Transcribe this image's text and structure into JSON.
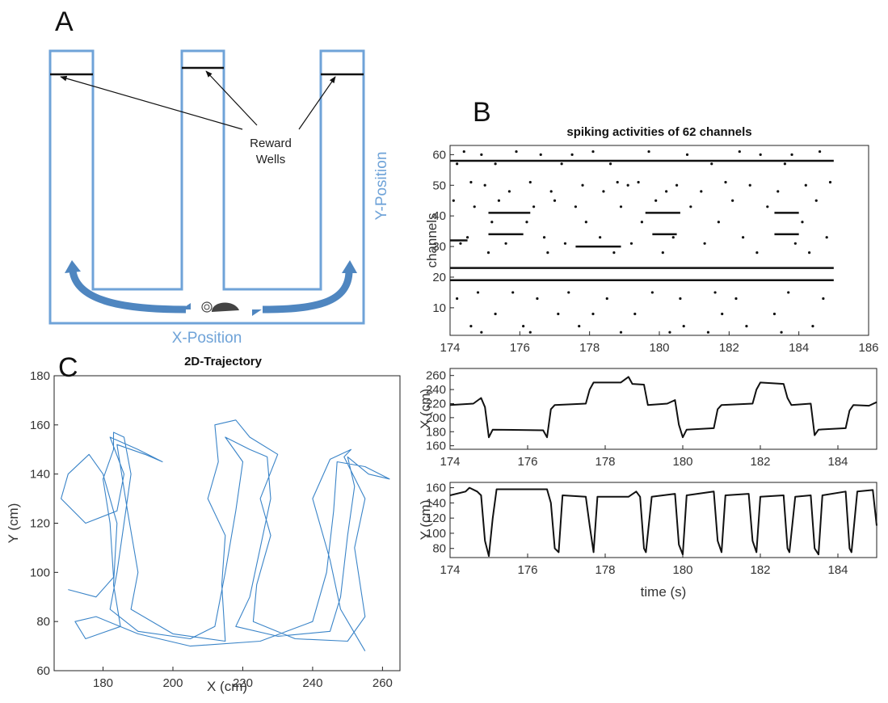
{
  "diagram": {
    "panel_label": "A",
    "callout": [
      "Reward",
      "Wells"
    ],
    "y_axis_label": "Y-Position",
    "x_axis_label": "X-Position"
  },
  "chart_data": [
    {
      "type": "line",
      "panel_label": "C",
      "title": "2D-Trajectory",
      "x_label": "X (cm)",
      "y_label": "Y (cm)",
      "xlim": [
        166,
        265
      ],
      "ylim": [
        60,
        180
      ],
      "xticks": [
        180,
        200,
        220,
        240,
        260
      ],
      "yticks": [
        60,
        80,
        100,
        120,
        140,
        160,
        180
      ],
      "series": [
        {
          "color": "#3a84c8",
          "x": [
            170,
            178,
            183,
            182,
            180,
            183,
            183,
            186,
            188,
            186,
            184,
            182,
            190,
            205,
            212,
            215,
            218,
            220,
            215,
            222,
            227,
            228,
            225,
            222,
            218,
            230,
            245,
            248,
            250,
            252,
            250,
            256,
            262,
            255,
            247,
            246,
            244,
            240,
            225,
            205,
            190,
            178,
            172,
            175,
            185,
            183,
            184,
            180,
            176,
            170,
            168,
            175,
            184,
            186,
            182,
            190,
            197,
            192,
            184,
            187,
            190,
            188,
            200,
            215,
            214,
            215,
            210,
            213,
            212,
            218,
            222,
            230,
            225,
            228,
            224,
            223,
            235,
            250,
            255,
            252,
            255,
            249,
            251,
            245,
            240,
            245,
            248,
            255
          ],
          "y": [
            93,
            90,
            98,
            120,
            138,
            150,
            157,
            155,
            140,
            120,
            100,
            85,
            76,
            73,
            78,
            100,
            125,
            145,
            155,
            150,
            147,
            130,
            110,
            90,
            78,
            74,
            76,
            90,
            115,
            135,
            147,
            140,
            138,
            143,
            145,
            125,
            100,
            80,
            72,
            70,
            75,
            82,
            80,
            73,
            78,
            95,
            120,
            140,
            148,
            140,
            130,
            120,
            125,
            140,
            155,
            150,
            145,
            148,
            152,
            125,
            100,
            85,
            75,
            72,
            95,
            115,
            130,
            145,
            160,
            162,
            155,
            148,
            130,
            115,
            95,
            80,
            73,
            72,
            82,
            110,
            130,
            147,
            150,
            146,
            130,
            105,
            85,
            68
          ]
        }
      ]
    },
    {
      "type": "raster",
      "panel_label": "B",
      "title": "spiking activities of 62 channels",
      "y_label": "channels",
      "xlim": [
        174,
        186
      ],
      "ylim": [
        1,
        63
      ],
      "xticks": [
        174,
        176,
        178,
        180,
        182,
        184,
        186
      ],
      "yticks": [
        10,
        20,
        30,
        40,
        50,
        60
      ],
      "color": "#111111",
      "x": [
        174.4,
        175.9,
        178.1,
        179.7,
        182.3,
        184.6,
        174.9,
        176.6,
        177.5,
        180.8,
        182.9,
        183.8,
        174.2,
        175.3,
        177.2,
        178.6,
        181.5,
        183.6,
        174.6,
        176.3,
        178.8,
        179.4,
        181.9,
        184.9,
        175.0,
        177.8,
        179.1,
        180.5,
        182.6,
        184.2,
        175.7,
        176.9,
        178.4,
        180.2,
        181.2,
        183.4,
        174.1,
        175.4,
        177.0,
        179.9,
        182.1,
        184.5,
        174.7,
        176.4,
        177.6,
        178.9,
        180.9,
        183.1,
        175.2,
        176.2,
        177.9,
        179.5,
        181.7,
        184.1,
        174.5,
        176.7,
        178.3,
        180.4,
        182.4,
        184.8,
        174.3,
        175.6,
        177.3,
        179.2,
        181.3,
        183.9,
        175.1,
        176.8,
        178.7,
        180.1,
        182.8,
        184.3,
        174.8,
        175.8,
        177.4,
        179.8,
        181.6,
        183.7,
        174.2,
        176.5,
        178.5,
        180.6,
        182.2,
        184.7,
        175.3,
        177.1,
        178.1,
        179.3,
        181.8,
        183.3,
        174.6,
        176.1,
        177.7,
        180.7,
        182.5,
        184.4,
        174.9,
        176.3,
        178.9,
        180.3,
        181.4,
        183.5
      ],
      "y": [
        61,
        61,
        61,
        61,
        61,
        61,
        60,
        60,
        60,
        60,
        60,
        60,
        57,
        57,
        57,
        57,
        57,
        57,
        51,
        51,
        51,
        51,
        51,
        51,
        50,
        50,
        50,
        50,
        50,
        50,
        48,
        48,
        48,
        48,
        48,
        48,
        45,
        45,
        45,
        45,
        45,
        45,
        43,
        43,
        43,
        43,
        43,
        43,
        38,
        38,
        38,
        38,
        38,
        38,
        33,
        33,
        33,
        33,
        33,
        33,
        31,
        31,
        31,
        31,
        31,
        31,
        28,
        28,
        28,
        28,
        28,
        28,
        15,
        15,
        15,
        15,
        15,
        15,
        13,
        13,
        13,
        13,
        13,
        13,
        8,
        8,
        8,
        8,
        8,
        8,
        4,
        4,
        4,
        4,
        4,
        4,
        2,
        2,
        2,
        2,
        2,
        2
      ],
      "segments": {
        "channel": [
          58,
          23,
          19,
          41,
          34,
          41,
          34,
          41,
          34,
          32,
          30
        ],
        "start": [
          174,
          174,
          174,
          175.1,
          175.1,
          179.6,
          179.8,
          183.3,
          183.3,
          174,
          177.6
        ],
        "end": [
          185,
          185,
          185,
          176.3,
          176.1,
          180.6,
          180.5,
          184,
          184,
          174.5,
          178.9
        ]
      }
    },
    {
      "type": "line",
      "y_label": "X (cm)",
      "xlim": [
        174,
        185
      ],
      "ylim": [
        155,
        270
      ],
      "xticks": [
        174,
        176,
        178,
        180,
        182,
        184
      ],
      "yticks": [
        160,
        180,
        200,
        220,
        240,
        260
      ],
      "series": [
        {
          "color": "#111111",
          "x": [
            174,
            174.6,
            174.8,
            174.9,
            175.0,
            175.1,
            176.4,
            176.5,
            176.6,
            176.7,
            177.5,
            177.6,
            177.7,
            178.4,
            178.6,
            178.7,
            179.0,
            179.1,
            179.6,
            179.8,
            179.9,
            180.0,
            180.1,
            180.8,
            180.9,
            181.0,
            181.8,
            181.9,
            182.0,
            182.6,
            182.7,
            182.8,
            183.3,
            183.4,
            183.5,
            184.2,
            184.3,
            184.4,
            184.8,
            185
          ],
          "y": [
            218,
            220,
            228,
            215,
            172,
            183,
            182,
            172,
            212,
            218,
            220,
            240,
            250,
            250,
            258,
            248,
            247,
            218,
            220,
            225,
            190,
            172,
            183,
            185,
            212,
            218,
            220,
            240,
            250,
            248,
            228,
            218,
            220,
            175,
            183,
            185,
            210,
            218,
            217,
            222
          ]
        }
      ]
    },
    {
      "type": "line",
      "y_label": "Y (cm)",
      "x_label": "time (s)",
      "xlim": [
        174,
        185
      ],
      "ylim": [
        68,
        167
      ],
      "xticks": [
        174,
        176,
        178,
        180,
        182,
        184
      ],
      "yticks": [
        80,
        100,
        120,
        140,
        160
      ],
      "series": [
        {
          "color": "#111111",
          "x": [
            174,
            174.4,
            174.5,
            174.7,
            174.8,
            174.9,
            175.0,
            175.1,
            175.2,
            176.5,
            176.6,
            176.7,
            176.8,
            176.9,
            177.5,
            177.6,
            177.7,
            177.8,
            178.6,
            178.8,
            178.9,
            179.0,
            179.05,
            179.2,
            179.8,
            179.9,
            180.0,
            180.1,
            180.8,
            180.9,
            181.0,
            181.1,
            181.7,
            181.8,
            181.9,
            182.0,
            182.6,
            182.7,
            182.75,
            182.9,
            183.3,
            183.4,
            183.5,
            183.6,
            184.2,
            184.3,
            184.35,
            184.5,
            184.9,
            185
          ],
          "y": [
            150,
            155,
            160,
            155,
            150,
            90,
            70,
            120,
            158,
            158,
            140,
            80,
            75,
            150,
            148,
            110,
            75,
            148,
            148,
            155,
            148,
            80,
            75,
            148,
            152,
            85,
            72,
            150,
            155,
            90,
            75,
            150,
            152,
            90,
            75,
            148,
            150,
            80,
            75,
            148,
            150,
            80,
            72,
            150,
            155,
            80,
            75,
            155,
            157,
            110
          ]
        }
      ]
    }
  ]
}
